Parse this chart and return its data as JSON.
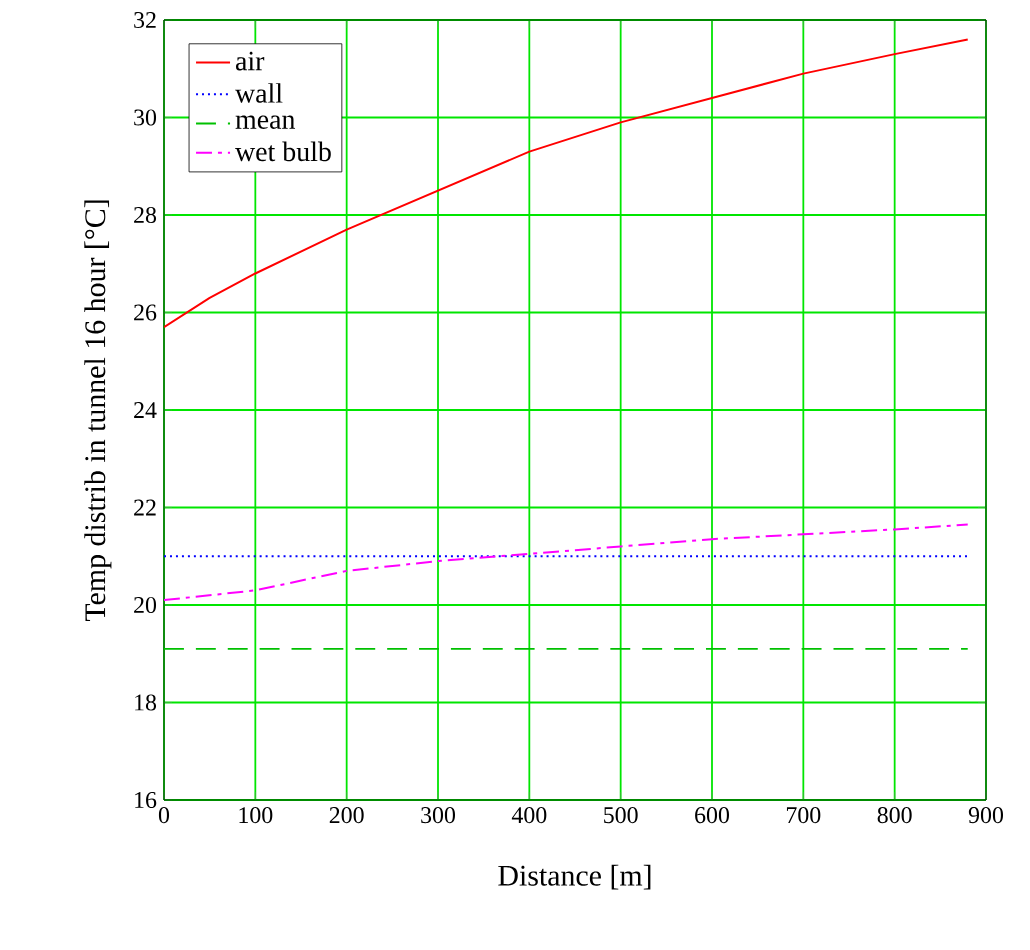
{
  "chart_data": {
    "type": "line",
    "xlabel": "Distance [m]",
    "ylabel": "Temp distrib in tunnel 16 hour [°C]",
    "xlim": [
      0,
      900
    ],
    "ylim": [
      16,
      32
    ],
    "xticks": [
      0,
      100,
      200,
      300,
      400,
      500,
      600,
      700,
      800,
      900
    ],
    "yticks": [
      16,
      18,
      20,
      22,
      24,
      26,
      28,
      30,
      32
    ],
    "grid": true,
    "legend": "top left",
    "series": [
      {
        "name": "air",
        "color": "#ff0000",
        "line_style": "solid",
        "x": [
          0,
          50,
          100,
          200,
          300,
          400,
          500,
          600,
          700,
          800,
          880
        ],
        "values": [
          25.7,
          26.3,
          26.8,
          27.7,
          28.5,
          29.3,
          29.9,
          30.4,
          30.9,
          31.3,
          31.6
        ]
      },
      {
        "name": "wall",
        "color": "#0000ff",
        "line_style": "dotted",
        "x": [
          0,
          880
        ],
        "values": [
          21.0,
          21.0
        ]
      },
      {
        "name": "mean",
        "color": "#00c000",
        "line_style": "dashed",
        "x": [
          0,
          880
        ],
        "values": [
          19.1,
          19.1
        ]
      },
      {
        "name": "wet bulb",
        "color": "#ff00ff",
        "line_style": "dashdot",
        "x": [
          0,
          100,
          200,
          300,
          400,
          500,
          600,
          700,
          800,
          880
        ],
        "values": [
          20.1,
          20.3,
          20.7,
          20.9,
          21.05,
          21.2,
          21.35,
          21.45,
          21.55,
          21.65
        ]
      }
    ]
  }
}
